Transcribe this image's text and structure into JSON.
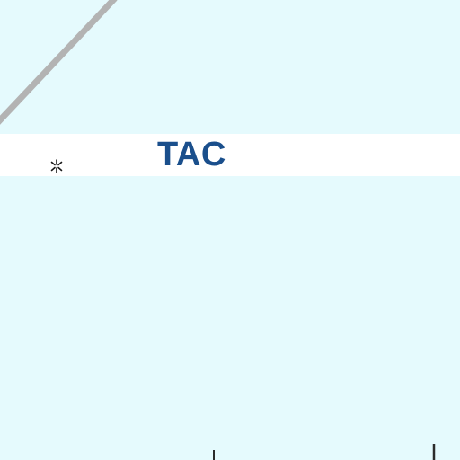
{
  "map": {
    "background_color": "#e5fafd",
    "band_color": "#ffffff",
    "label_color": "#1a4f8c",
    "line_color": "#b3b3b3",
    "label": "TAC",
    "feature_icon": "asterisk-icon"
  }
}
